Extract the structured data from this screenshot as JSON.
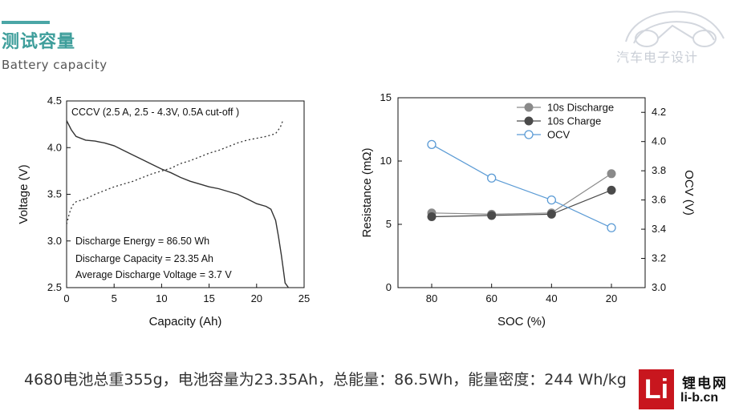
{
  "header": {
    "title_zh": "测试容量",
    "title_en": "Battery  capacity"
  },
  "logo": {
    "text": "汽车电子设计",
    "color": "#c9ced6"
  },
  "footer": {
    "text": "4680电池总重355g，电池容量为23.35Ah，总能量：86.5Wh，能量密度：244 Wh/kg"
  },
  "watermark": {
    "box": "Li",
    "zh": "锂电网",
    "en": "li-b.cn",
    "color": "#c8161e"
  },
  "chart_data": [
    {
      "type": "line",
      "xlabel": "Capacity (Ah)",
      "ylabel": "Voltage (V)",
      "xlim": [
        0,
        25
      ],
      "ylim": [
        2.5,
        4.5
      ],
      "xticks": [
        0,
        5,
        10,
        15,
        20,
        25
      ],
      "yticks": [
        2.5,
        3.0,
        3.5,
        4.0,
        4.5
      ],
      "annotations": [
        "CCCV (2.5 A, 2.5 - 4.3V, 0.5A cut-off )",
        "Discharge Energy = 86.50 Wh",
        "Discharge Capacity = 23.35 Ah",
        "Average Discharge Voltage = 3.7 V"
      ],
      "series": [
        {
          "style": "solid",
          "x": [
            0,
            0.5,
            1,
            2,
            3,
            3.5,
            4,
            5,
            6,
            7,
            8,
            9,
            10,
            11,
            12,
            13,
            14,
            15,
            16,
            17,
            18,
            19,
            20,
            21,
            21.5,
            22,
            22.3,
            22.6,
            22.8,
            23.0,
            23.35
          ],
          "y": [
            4.29,
            4.19,
            4.12,
            4.08,
            4.07,
            4.06,
            4.05,
            4.02,
            3.97,
            3.92,
            3.87,
            3.82,
            3.77,
            3.73,
            3.68,
            3.64,
            3.61,
            3.58,
            3.56,
            3.53,
            3.5,
            3.45,
            3.4,
            3.37,
            3.34,
            3.22,
            3.05,
            2.85,
            2.7,
            2.55,
            2.5
          ]
        },
        {
          "style": "dotted",
          "x": [
            0,
            0.3,
            0.6,
            1,
            2,
            3,
            4,
            5,
            6,
            7,
            8,
            9,
            10,
            11,
            12,
            13,
            14,
            15,
            16,
            17,
            18,
            19,
            20,
            21,
            22,
            22.5,
            22.8
          ],
          "y": [
            3.18,
            3.3,
            3.38,
            3.42,
            3.45,
            3.5,
            3.54,
            3.58,
            3.61,
            3.64,
            3.68,
            3.72,
            3.75,
            3.78,
            3.83,
            3.86,
            3.9,
            3.94,
            3.97,
            4.01,
            4.05,
            4.08,
            4.1,
            4.12,
            4.15,
            4.22,
            4.3
          ]
        }
      ]
    },
    {
      "type": "line",
      "xlabel": "SOC (%)",
      "ylabel": "Resistance (mΩ)",
      "y2label": "OCV (V)",
      "x_categories": [
        "80",
        "60",
        "40",
        "20"
      ],
      "ylim": [
        0,
        15
      ],
      "yticks": [
        0,
        5,
        10,
        15
      ],
      "y2lim": [
        3.0,
        4.3
      ],
      "y2ticks": [
        "3.0",
        "3.2",
        "3.4",
        "3.6",
        "3.8",
        "4.0",
        "4.2"
      ],
      "legend_position": "top-right",
      "series": [
        {
          "name": "10s Discharge",
          "axis": "left",
          "marker": "filled-circle",
          "color": "#8a8a8a",
          "values": [
            5.9,
            5.8,
            5.9,
            9.0
          ]
        },
        {
          "name": "10s Charge",
          "axis": "left",
          "marker": "filled-circle",
          "color": "#4a4a4a",
          "values": [
            5.6,
            5.7,
            5.8,
            7.7
          ]
        },
        {
          "name": "OCV",
          "axis": "right",
          "marker": "open-circle",
          "color": "#5b9bd5",
          "values": [
            3.98,
            3.75,
            3.6,
            3.41
          ]
        }
      ]
    }
  ]
}
